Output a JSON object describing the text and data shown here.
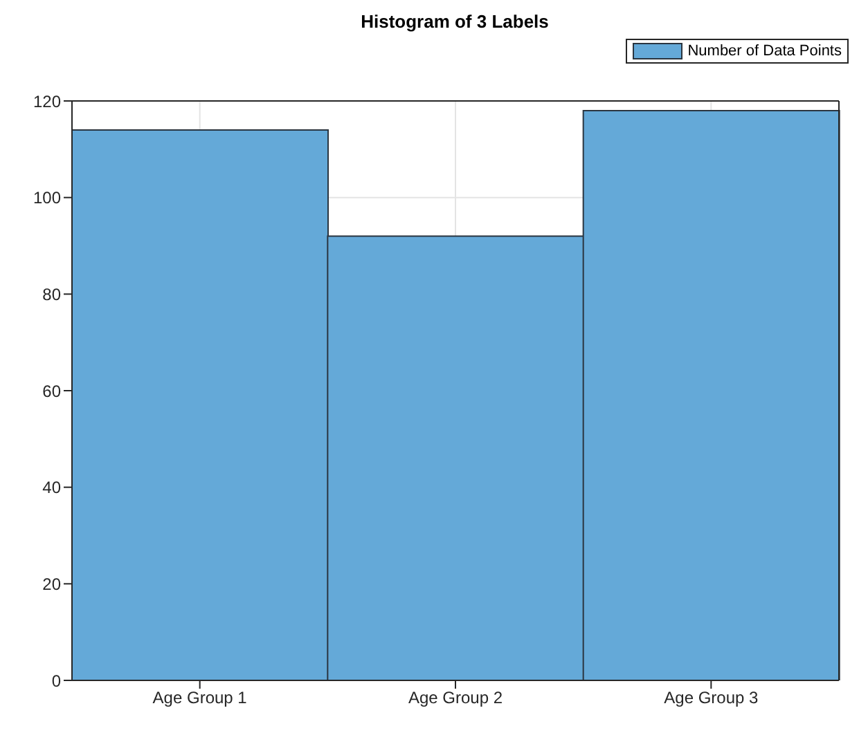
{
  "chart_data": {
    "type": "bar",
    "title": "Histogram of 3 Labels",
    "categories": [
      "Age Group 1",
      "Age Group 2",
      "Age Group 3"
    ],
    "series": [
      {
        "name": "Number of Data Points",
        "color": "#64a9d8",
        "values": [
          114,
          92,
          118
        ]
      }
    ],
    "ylim": [
      0,
      120
    ],
    "yticks": [
      0,
      20,
      40,
      60,
      80,
      100,
      120
    ],
    "grid": true,
    "legend": "top right"
  }
}
